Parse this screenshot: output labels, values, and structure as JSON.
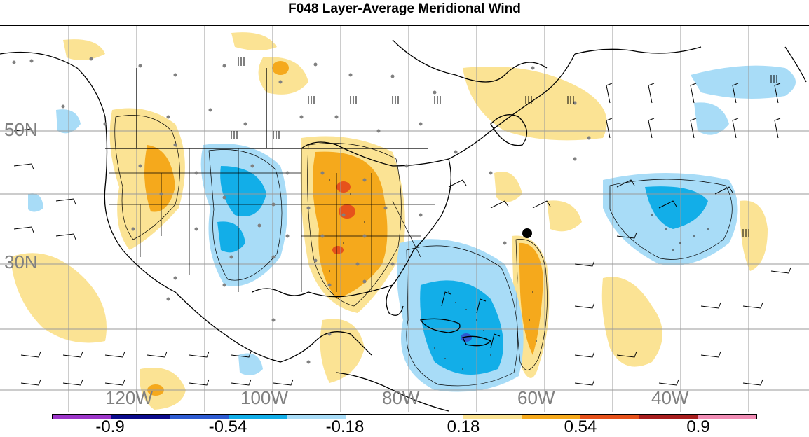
{
  "title": "F048 Layer-Average Meridional Wind",
  "lat_labels": [
    "50N",
    "30N"
  ],
  "lon_labels": [
    "120W",
    "100W",
    "80W",
    "60W",
    "40W"
  ],
  "colorbar": {
    "colors": [
      "#9c35c9",
      "#0a0a8c",
      "#2d5bd2",
      "#12aee8",
      "#a8dcf7",
      "#ffffff",
      "#ffffff",
      "#fbe394",
      "#f5a91c",
      "#e6521b",
      "#a81e1e",
      "#f08cb4"
    ],
    "labels": [
      "-0.9",
      "-0.54",
      "-0.18",
      "0.18",
      "0.54",
      "0.9"
    ]
  },
  "legend_marker": "black-dot"
}
